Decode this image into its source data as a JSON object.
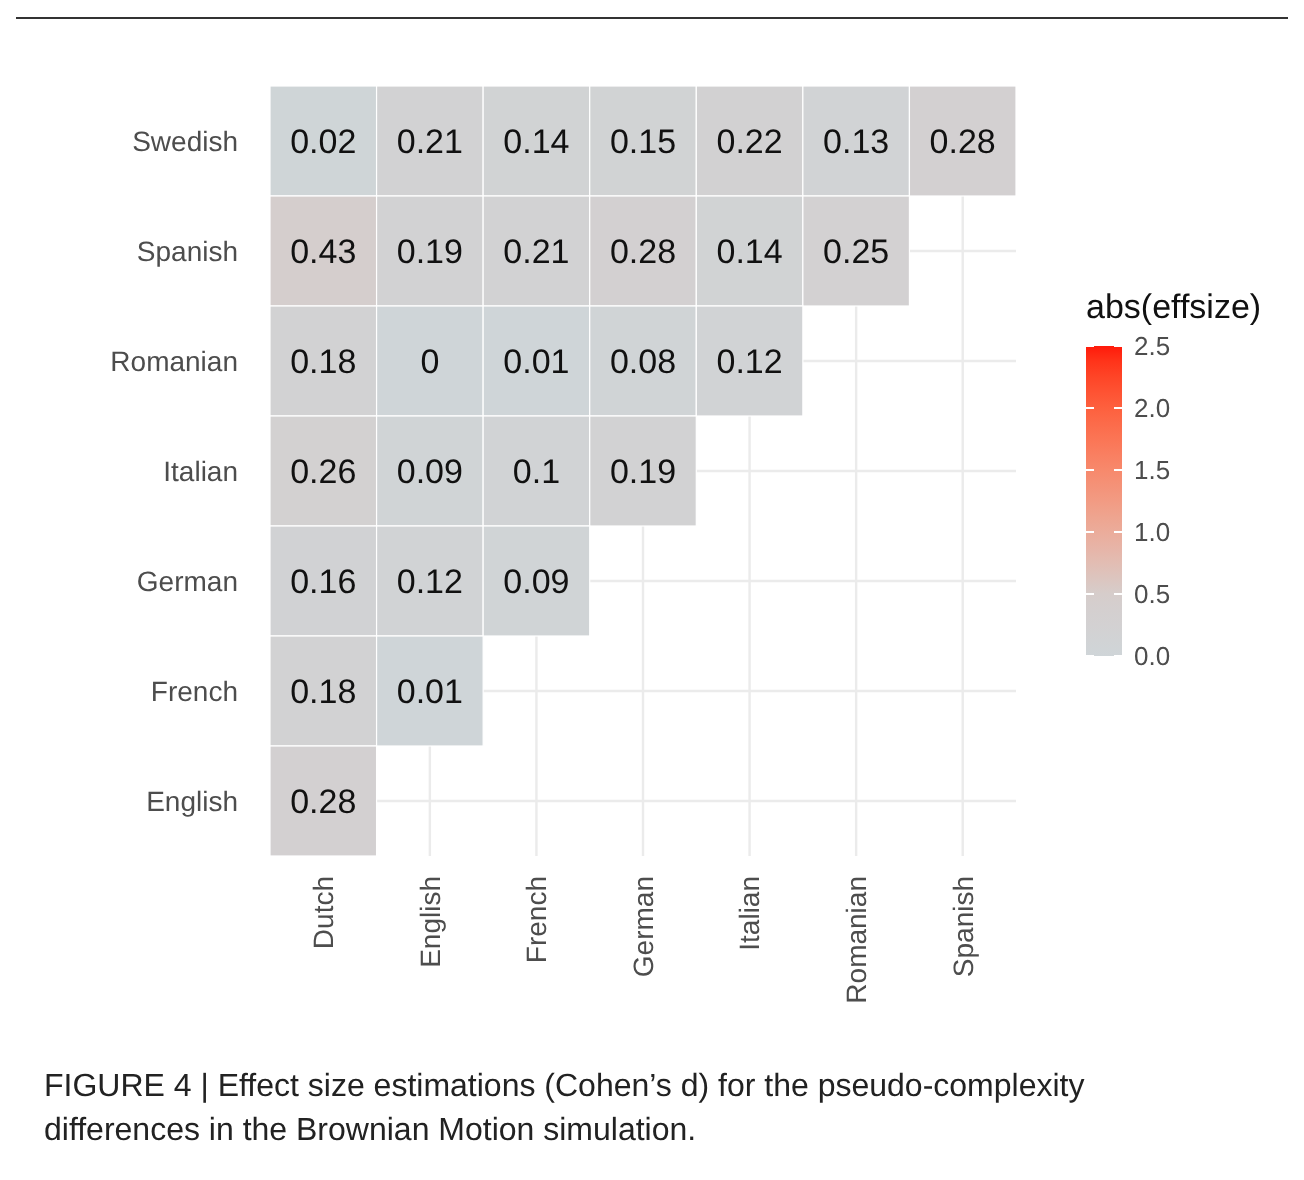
{
  "chart_data": {
    "type": "heatmap",
    "categories": [
      "Dutch",
      "English",
      "French",
      "German",
      "Italian",
      "Romanian",
      "Spanish"
    ],
    "y_categories": [
      "Swedish",
      "Spanish",
      "Romanian",
      "Italian",
      "German",
      "French",
      "English"
    ],
    "cells": [
      [
        0.02,
        0.21,
        0.14,
        0.15,
        0.22,
        0.13,
        0.28
      ],
      [
        0.43,
        0.19,
        0.21,
        0.28,
        0.14,
        0.25,
        null
      ],
      [
        0.18,
        0,
        0.01,
        0.08,
        0.12,
        null,
        null
      ],
      [
        0.26,
        0.09,
        0.1,
        0.19,
        null,
        null,
        null
      ],
      [
        0.16,
        0.12,
        0.09,
        null,
        null,
        null,
        null
      ],
      [
        0.18,
        0.01,
        null,
        null,
        null,
        null,
        null
      ],
      [
        0.28,
        null,
        null,
        null,
        null,
        null,
        null
      ]
    ],
    "data_labels": true,
    "clabel": "abs(effsize)",
    "clim": [
      0,
      2.5
    ],
    "cticks": [
      {
        "value": 0,
        "label": "0.0"
      },
      0.5,
      {
        "value": 1,
        "label": "1.0"
      },
      1.5,
      {
        "value": 2,
        "label": "2.0"
      },
      2.5
    ],
    "grid": true,
    "annotations": [
      "FIGURE 4 | Effect size estimations (Cohen’s d) for the pseudo-complexity differences in the Brownian Motion simulation."
    ]
  }
}
